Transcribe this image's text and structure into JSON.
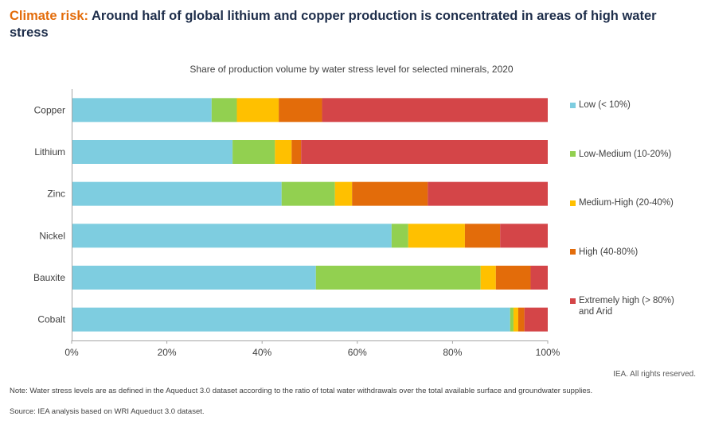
{
  "header": {
    "title_prefix": "Climate risk:",
    "title_rest": " Around half of global lithium and copper production is concentrated in areas of high water stress"
  },
  "chart_data": {
    "type": "bar",
    "orientation": "horizontal",
    "stacked": true,
    "title": "Share of production volume by water stress level for selected minerals, 2020",
    "categories": [
      "Copper",
      "Lithium",
      "Zinc",
      "Nickel",
      "Bauxite",
      "Cobalt"
    ],
    "series": [
      {
        "name": "Low (< 10%)",
        "color": "#7ecde0",
        "values": [
          29.4,
          33.8,
          44.1,
          67.2,
          51.3,
          92.1
        ]
      },
      {
        "name": "Low-Medium (10-20%)",
        "color": "#92d050",
        "values": [
          5.3,
          8.9,
          11.2,
          3.5,
          34.6,
          0.7
        ]
      },
      {
        "name": "Medium-High (20-40%)",
        "color": "#ffc000",
        "values": [
          8.8,
          3.5,
          3.6,
          11.9,
          3.2,
          1.0
        ]
      },
      {
        "name": "High (40-80%)",
        "color": "#e36c0a",
        "values": [
          9.1,
          2.0,
          15.9,
          7.4,
          7.3,
          1.3
        ]
      },
      {
        "name": "Extremely high (> 80%) and Arid",
        "color": "#d44548",
        "values": [
          47.4,
          51.8,
          25.2,
          10.0,
          3.6,
          4.9
        ]
      }
    ],
    "xlim": [
      0,
      100
    ],
    "xticks": [
      "0%",
      "20%",
      "40%",
      "60%",
      "80%",
      "100%"
    ],
    "grid": false,
    "legend_position": "right"
  },
  "footer": {
    "rights": "IEA. All rights reserved.",
    "note": "Note: Water stress levels are as defined in the Aqueduct 3.0 dataset according to the ratio of total water withdrawals over the total available surface and groundwater supplies.",
    "source": "Source: IEA analysis based on WRI Aqueduct 3.0 dataset."
  }
}
